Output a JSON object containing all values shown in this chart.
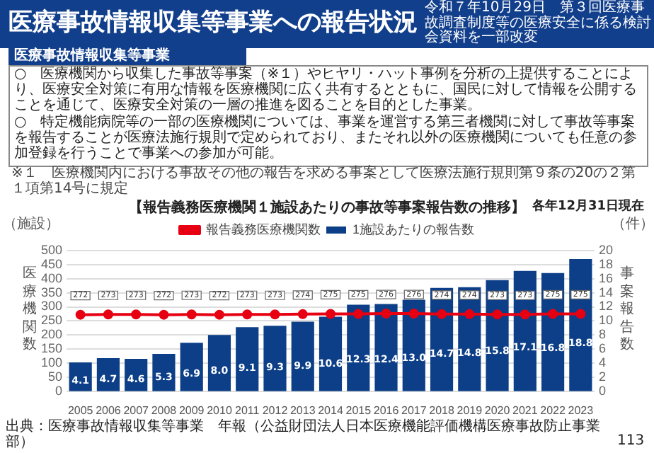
{
  "chart_data": {
    "type": "bar",
    "title": "【報告義務医療機関１施設あたりの事故等事案報告数の推移】",
    "ylabel": "医療機関数",
    "y2label": "事案報告数",
    "annotations": [
      "令和７年10月29日　第３回医療事故調査制度等の医療安全に係る検討会資料を一部改変",
      "医療事故情報収集等事業への報告状況",
      "医療事故情報収集等事業",
      "○　医療機関から収集した事故等事案（※１）やヒヤリ・ハット事例を分析の上提供することにより、医療安全対策に有用な情報を医療機関に広く共有するとともに、国民に対して情報を公開することを通じて、医療安全対策の一層の推進を図ることを目的とした事業。",
      "○　特定機能病院等の一部の医療機関については、事業を運営する第三者機関に対して事故等事案を報告することが医療法施行規則で定められており、またそれ以外の医療機関についても任意の参加登録を行うことで事業への参加が可能。",
      "※１　医療機関内における事故その他の報告を求める事案として医療法施行規則第９条の20の２第１項第14号に規定",
      "各年12月31日現在",
      "（施設）",
      "（件）",
      "出典：医療事故情報収集等事業　年報（公益財団法人日本医療機能評価機構医療事故防止事業部）",
      "113"
    ],
    "categories": [
      "2005",
      "2006",
      "2007",
      "2008",
      "2009",
      "2010",
      "2011",
      "2012",
      "2013",
      "2014",
      "2015",
      "2016",
      "2017",
      "2018",
      "2019",
      "2020",
      "2021",
      "2022",
      "2023"
    ],
    "series": [
      {
        "name": "1施設あたりの報告数",
        "axis": "y2",
        "color": "#0c3f88",
        "values": [
          4.1,
          4.7,
          4.6,
          5.3,
          6.9,
          8.0,
          9.1,
          9.3,
          9.9,
          10.6,
          12.3,
          12.4,
          13.0,
          14.7,
          14.8,
          15.8,
          17.1,
          16.8,
          18.8
        ],
        "value_labels": [
          "4.1",
          "4.7",
          "4.6",
          "5.3",
          "6.9",
          "8.0",
          "9.1",
          "9.3",
          "9.9",
          "10.6",
          "12.3",
          "12.4",
          "13.0",
          "14.7",
          "14.8",
          "15.8",
          "17.1",
          "16.8",
          "18.8"
        ]
      },
      {
        "name": "報告義務医療機関数",
        "type": "line",
        "color": "#e60012",
        "values": [
          272,
          273,
          273,
          272,
          273,
          272,
          273,
          273,
          274,
          275,
          275,
          276,
          276,
          274,
          274,
          273,
          273,
          275,
          275
        ],
        "value_labels": [
          "272",
          "273",
          "273",
          "272",
          "273",
          "272",
          "273",
          "273",
          "274",
          "275",
          "275",
          "276",
          "276",
          "274",
          "274",
          "273",
          "273",
          "275",
          "275"
        ]
      }
    ],
    "ylim": [
      0,
      500
    ],
    "yticks": [
      0,
      50,
      100,
      150,
      200,
      250,
      300,
      350,
      400,
      450,
      500
    ],
    "y2lim": [
      0,
      20
    ],
    "y2ticks": [
      0,
      2,
      4,
      6,
      8,
      10,
      12,
      14,
      16,
      18,
      20
    ],
    "grid": "y",
    "legend": "top",
    "marker": "circle",
    "line_style": "solid"
  }
}
